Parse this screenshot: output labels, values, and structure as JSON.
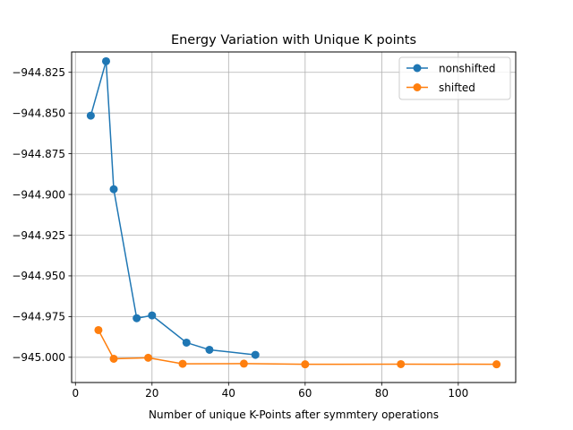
{
  "chart_data": {
    "type": "line",
    "title": "Energy Variation with Unique K points",
    "xlabel": "Number of unique K-Points after symmtery operations",
    "ylabel": "",
    "xlim": [
      -1,
      115
    ],
    "ylim": [
      -945.0155,
      -944.8125
    ],
    "x_ticks": [
      0,
      20,
      40,
      60,
      80,
      100
    ],
    "y_ticks": [
      -945.0,
      -944.975,
      -944.95,
      -944.925,
      -944.9,
      -944.875,
      -944.85,
      -944.825
    ],
    "y_tick_labels": [
      "−945.000",
      "−944.975",
      "−944.950",
      "−944.925",
      "−944.900",
      "−944.875",
      "−944.850",
      "−944.825"
    ],
    "grid": true,
    "legend_position": "top-right",
    "series": [
      {
        "name": "nonshifted",
        "color": "#1f77b4",
        "x": [
          4,
          8,
          10,
          16,
          20,
          29,
          35,
          47
        ],
        "y": [
          -944.8516,
          -944.8182,
          -944.8968,
          -944.976,
          -944.9743,
          -944.991,
          -944.9954,
          -944.9985
        ]
      },
      {
        "name": "shifted",
        "color": "#ff7f0e",
        "x": [
          6,
          10,
          19,
          28,
          44,
          60,
          85,
          110
        ],
        "y": [
          -944.9833,
          -945.0009,
          -945.0003,
          -945.004,
          -945.0039,
          -945.0043,
          -945.0042,
          -945.0043
        ]
      }
    ]
  }
}
